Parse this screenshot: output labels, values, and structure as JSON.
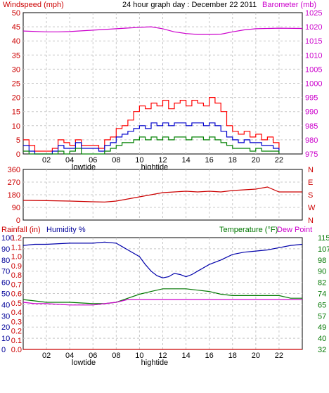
{
  "page_title": "24 hour graph day : December 22 2011",
  "colors": {
    "wind": "#ff0000",
    "gust": "#ff0000",
    "avg_wind": "#0000cc",
    "wind_min": "#008000",
    "barometer": "#cc00cc",
    "direction": "#cc0000",
    "rainfall": "#cc0000",
    "humidity": "#0000aa",
    "temperature": "#007700",
    "dewpoint": "#cc00cc",
    "grid": "#c8c8c8",
    "frame": "#000000"
  },
  "x_tick_labels": [
    "02",
    "04",
    "06",
    "08",
    "10",
    "12",
    "14",
    "16",
    "18",
    "20",
    "22"
  ],
  "tide_labels": [
    {
      "text": "lowtide",
      "hour": 5.2
    },
    {
      "text": "hightide",
      "hour": 11.3
    }
  ],
  "chart_data": [
    {
      "type": "line",
      "title": "24 hour graph day : December 22 2011",
      "ylabel": "Windspeed (mph)",
      "y2label": "Barometer (mb)",
      "xlim": [
        0,
        24
      ],
      "ylim": [
        0,
        50
      ],
      "y2lim": [
        975,
        1025
      ],
      "yticks": [
        "0",
        "5",
        "10",
        "15",
        "20",
        "25",
        "30",
        "35",
        "40",
        "45",
        "50"
      ],
      "y2ticks": [
        "975",
        "980",
        "985",
        "990",
        "995",
        "1000",
        "1005",
        "1010",
        "1015",
        "1020",
        "1025"
      ],
      "grid": true,
      "series": [
        {
          "role": "wind_gust",
          "x": [
            0,
            0.5,
            1,
            2.5,
            3,
            3.5,
            4,
            4.5,
            5,
            6,
            6.5,
            7,
            7.5,
            8,
            8.5,
            9,
            9.5,
            10,
            10.5,
            11,
            11.5,
            12,
            12.5,
            13,
            13.5,
            14,
            14.5,
            15,
            15.5,
            16,
            16.5,
            17,
            17.5,
            18,
            18.5,
            19,
            19.5,
            20,
            20.5,
            21,
            21.5,
            22
          ],
          "values": [
            5,
            3,
            1,
            2,
            5,
            4,
            3,
            5,
            3,
            3,
            2,
            5,
            6,
            9,
            10,
            12,
            15,
            17,
            16,
            18,
            17,
            19,
            16,
            18,
            19,
            17,
            19,
            18,
            17,
            20,
            18,
            15,
            10,
            8,
            7,
            8,
            6,
            7,
            5,
            6,
            4,
            0
          ]
        },
        {
          "role": "wind_average",
          "x": [
            0,
            0.5,
            1,
            2.5,
            3,
            3.5,
            4,
            4.5,
            5,
            6,
            6.5,
            7,
            7.5,
            8,
            8.5,
            9,
            9.5,
            10,
            10.5,
            11,
            11.5,
            12,
            12.5,
            13,
            13.5,
            14,
            14.5,
            15,
            15.5,
            16,
            16.5,
            17,
            17.5,
            18,
            18.5,
            19,
            19.5,
            20,
            20.5,
            21,
            21.5,
            22
          ],
          "values": [
            3,
            1,
            0,
            1,
            3,
            2,
            2,
            4,
            2,
            2,
            1,
            3,
            4,
            6,
            7,
            8,
            9,
            10,
            9,
            11,
            10,
            11,
            10,
            11,
            11,
            10,
            11,
            11,
            10,
            11,
            10,
            8,
            6,
            5,
            4,
            5,
            4,
            4,
            3,
            3,
            2,
            0
          ]
        },
        {
          "name": "",
          "role": "wind_minimum",
          "x": [
            0,
            0.5,
            1,
            2.5,
            3,
            3.5,
            4,
            4.5,
            5,
            6,
            6.5,
            7,
            7.5,
            8,
            8.5,
            9,
            9.5,
            10,
            10.5,
            11,
            11.5,
            12,
            12.5,
            13,
            13.5,
            14,
            14.5,
            15,
            15.5,
            16,
            16.5,
            17,
            17.5,
            18,
            18.5,
            19,
            19.5,
            20,
            20.5,
            21,
            21.5,
            22
          ],
          "values": [
            1,
            0,
            0,
            0,
            1,
            0,
            1,
            2,
            0,
            0,
            0,
            1,
            2,
            3,
            4,
            4,
            5,
            6,
            5,
            6,
            5,
            6,
            5,
            6,
            6,
            5,
            6,
            6,
            5,
            6,
            5,
            4,
            3,
            2,
            2,
            2,
            1,
            2,
            1,
            1,
            1,
            0
          ]
        },
        {
          "role": "barometer",
          "axis": "right",
          "x": [
            0,
            2,
            3,
            4,
            6,
            8,
            10,
            11,
            12,
            13,
            14,
            15,
            16,
            17,
            18,
            19,
            20,
            22,
            24
          ],
          "values": [
            1018.5,
            1018.2,
            1018.2,
            1018.3,
            1018.8,
            1019.3,
            1019.8,
            1020.0,
            1019.3,
            1018.2,
            1017.6,
            1017.3,
            1017.3,
            1017.4,
            1018.2,
            1018.9,
            1019.3,
            1019.5,
            1019.4
          ]
        }
      ]
    },
    {
      "type": "scatter",
      "ylabel": "",
      "yticks": [
        "0",
        "90",
        "180",
        "270",
        "360"
      ],
      "y2ticks": [
        "N",
        "W",
        "S",
        "E",
        "N"
      ],
      "xlim": [
        0,
        24
      ],
      "ylim": [
        0,
        360
      ],
      "grid": true,
      "series": [
        {
          "role": "wind_direction",
          "x": [
            0,
            2,
            4,
            6,
            7,
            8,
            9,
            10,
            11,
            12,
            13,
            14,
            15,
            16,
            17,
            18,
            19,
            20,
            21,
            22,
            24
          ],
          "values": [
            140,
            138,
            135,
            130,
            128,
            135,
            150,
            165,
            180,
            195,
            200,
            205,
            200,
            205,
            200,
            210,
            215,
            220,
            235,
            200,
            200
          ]
        }
      ]
    },
    {
      "type": "line",
      "ylabel": "Rainfall (in)",
      "ylabel2": "Humidity %",
      "y3label": "Temperature (°F)",
      "y4label": "Dew Point",
      "xlim": [
        0,
        24
      ],
      "humidity_ticks": [
        "0",
        "10",
        "20",
        "30",
        "40",
        "50",
        "60",
        "70",
        "80",
        "90",
        "100"
      ],
      "rain_ticks": [
        "0.0",
        "0.1",
        "0.2",
        "0.3",
        "0.4",
        "0.5",
        "0.6",
        "0.7",
        "0.8",
        "0.9",
        "1.0",
        "1.1",
        "1.2"
      ],
      "temp_ticks": [
        "32",
        "40",
        "49",
        "57",
        "65",
        "74",
        "82",
        "90",
        "98",
        "107",
        "115"
      ],
      "temp_lim": [
        32,
        115
      ],
      "humidity_lim": [
        0,
        100
      ],
      "grid": true,
      "series": [
        {
          "role": "humidity",
          "axis": "humidity",
          "x": [
            0,
            1,
            2,
            4,
            6,
            7,
            8,
            8.5,
            9,
            10,
            10.5,
            11,
            11.5,
            12,
            12.5,
            13,
            13.5,
            14,
            14.5,
            15,
            16,
            17,
            18,
            19,
            20,
            21,
            22,
            23,
            24
          ],
          "values": [
            93,
            94,
            94,
            95,
            95,
            96,
            95,
            92,
            89,
            83,
            76,
            70,
            66,
            64,
            65,
            68,
            67,
            65,
            67,
            70,
            76,
            80,
            85,
            87,
            88,
            89,
            91,
            93,
            94
          ]
        },
        {
          "role": "temperature",
          "axis": "temperature",
          "x": [
            0,
            1,
            2,
            4,
            6,
            7,
            8,
            9,
            10,
            11,
            12,
            13,
            14,
            15,
            16,
            17,
            18,
            20,
            22,
            23,
            24
          ],
          "values": [
            69,
            68,
            67,
            67,
            66,
            66,
            67,
            70,
            73,
            75,
            77,
            77,
            77,
            76,
            75,
            73,
            72,
            72,
            72,
            70,
            70
          ]
        },
        {
          "role": "dewpoint",
          "axis": "temperature",
          "x": [
            0,
            1,
            2,
            4,
            6,
            7,
            8,
            9,
            10,
            11,
            12,
            13,
            14,
            15,
            16,
            18,
            20,
            22,
            24
          ],
          "values": [
            67,
            66,
            66,
            65,
            65,
            66,
            67,
            69,
            69,
            69,
            69,
            69,
            69,
            69,
            69,
            69,
            69,
            69,
            69
          ]
        },
        {
          "role": "rainfall",
          "axis": "rain",
          "x": [
            0,
            24
          ],
          "values": [
            0,
            0
          ]
        }
      ]
    }
  ]
}
